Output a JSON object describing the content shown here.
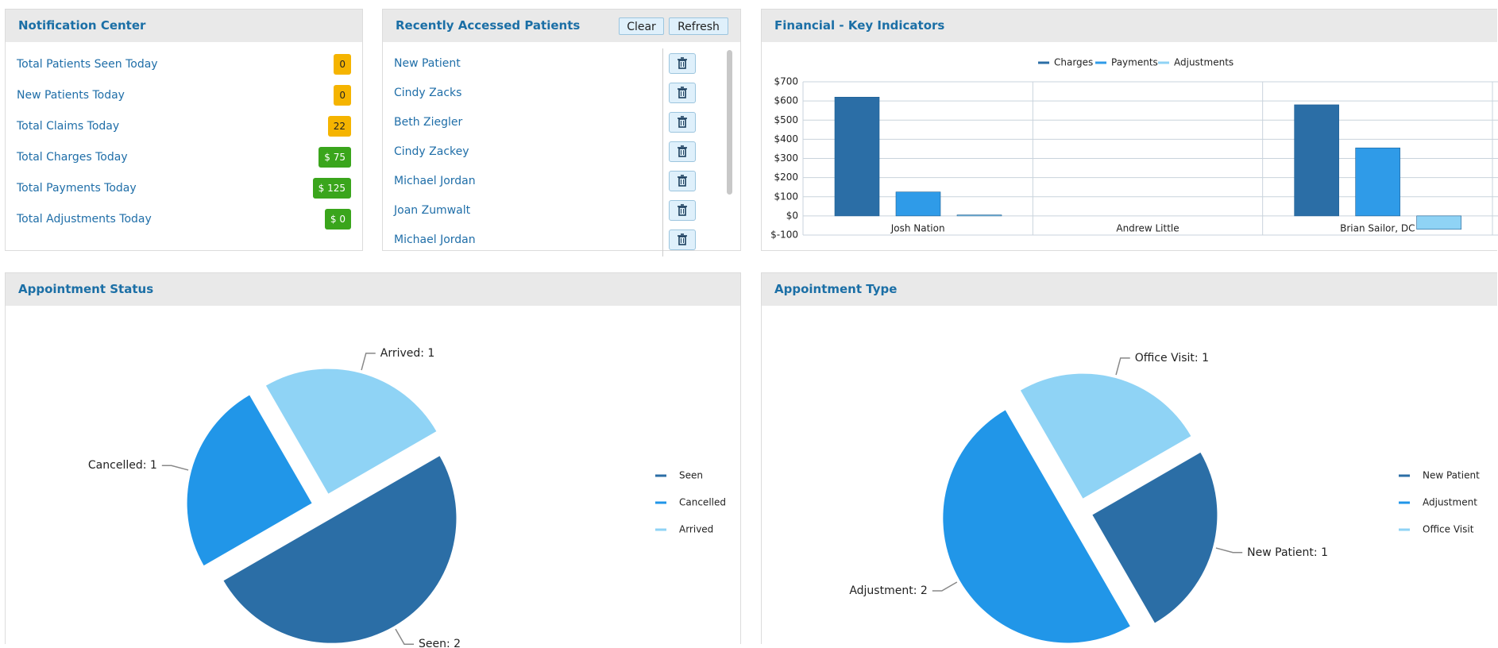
{
  "notification_center": {
    "title": "Notification Center",
    "items": [
      {
        "label": "Total Patients Seen Today",
        "value": "0",
        "color": "#f5b400"
      },
      {
        "label": "New Patients Today",
        "value": "0",
        "color": "#f5b400"
      },
      {
        "label": "Total Claims Today",
        "value": "22",
        "color": "#f5b400"
      },
      {
        "label": "Total Charges Today",
        "value": "$ 75",
        "color": "#3aa51c"
      },
      {
        "label": "Total Payments Today",
        "value": "$ 125",
        "color": "#3aa51c"
      },
      {
        "label": "Total Adjustments Today",
        "value": "$ 0",
        "color": "#3aa51c"
      }
    ]
  },
  "recent_patients": {
    "title": "Recently Accessed Patients",
    "buttons": [
      "Clear",
      "Refresh"
    ],
    "patients": [
      "New Patient",
      "Cindy Zacks",
      "Beth Ziegler",
      "Cindy Zackey",
      "Michael Jordan",
      "Joan Zumwalt",
      "Michael Jordan"
    ]
  },
  "chart_data": [
    {
      "type": "bar",
      "title": "Financial - Key Indicators",
      "categories": [
        "Josh Nation",
        "Andrew Little",
        "Brian Sailor, DC"
      ],
      "series": [
        {
          "name": "Charges",
          "color": "#2b6ea6",
          "values": [
            620,
            0,
            580
          ]
        },
        {
          "name": "Payments",
          "color": "#2f9be8",
          "values": [
            125,
            0,
            355
          ]
        },
        {
          "name": "Adjustments",
          "color": "#8fd3f5",
          "values": [
            5,
            0,
            -70
          ]
        }
      ],
      "ylim": [
        -100,
        700
      ],
      "yticks": [
        {
          "value": -100,
          "label": "$-100"
        },
        {
          "value": 0,
          "label": "$0"
        },
        {
          "value": 100,
          "label": "$100"
        },
        {
          "value": 200,
          "label": "$200"
        },
        {
          "value": 300,
          "label": "$300"
        },
        {
          "value": 400,
          "label": "$400"
        },
        {
          "value": 500,
          "label": "$500"
        },
        {
          "value": 600,
          "label": "$600"
        },
        {
          "value": 700,
          "label": "$700"
        }
      ],
      "grid": true,
      "legend": "top"
    },
    {
      "type": "pie",
      "title": "Appointment Status",
      "categories": [
        "Seen",
        "Cancelled",
        "Arrived"
      ],
      "values": [
        2,
        1,
        1
      ],
      "value_labels": [
        "Seen: 2",
        "Cancelled: 1",
        "Arrived: 1"
      ],
      "colors": [
        "#2b6ea6",
        "#2196e8",
        "#8fd3f5"
      ],
      "legend": "right"
    },
    {
      "type": "pie",
      "title": "Appointment Type",
      "categories": [
        "New Patient",
        "Adjustment",
        "Office Visit"
      ],
      "values": [
        1,
        2,
        1
      ],
      "value_labels": [
        "New Patient: 1",
        "Adjustment: 2",
        "Office Visit: 1"
      ],
      "colors": [
        "#2b6ea6",
        "#2196e8",
        "#8fd3f5"
      ],
      "legend": "right"
    }
  ]
}
